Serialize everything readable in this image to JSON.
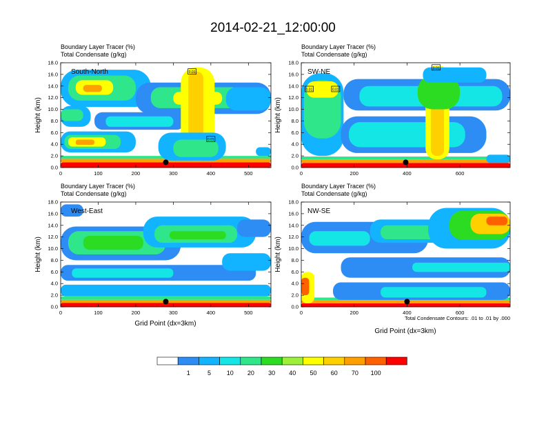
{
  "title": "2014-02-21_12:00:00",
  "colors": {
    "levels": [
      "#ffffff",
      "#2e8df5",
      "#12b4ff",
      "#14e6e6",
      "#30e68a",
      "#2cdc22",
      "#9cf03a",
      "#ffff00",
      "#ffd000",
      "#ffa000",
      "#ff6000",
      "#ff0000"
    ],
    "contour": "#000000",
    "marker": "#000000"
  },
  "labelbar": {
    "labels": [
      "1",
      "5",
      "10",
      "20",
      "30",
      "40",
      "50",
      "60",
      "70",
      "100"
    ]
  },
  "footnote": "Total Condensate Contours: .01 to .01 by .000",
  "chart_data": [
    {
      "type": "heatmap",
      "panel_label": "South-North",
      "title_lines": [
        "Boundary Layer Tracer   (%)",
        "Total Condensate   (g/kg)"
      ],
      "xlabel": "",
      "ylabel": "Height (km)",
      "xlim": [
        0,
        560
      ],
      "ylim": [
        0,
        18
      ],
      "xticks": [
        0,
        100,
        200,
        300,
        400,
        500
      ],
      "yticks": [
        0,
        2,
        4,
        6,
        8,
        10,
        12,
        14,
        16,
        18
      ],
      "ytick_labels": [
        "0.0",
        "2.0",
        "4.0",
        "6.0",
        "8.0",
        "10.0",
        "12.0",
        "14.0",
        "16.0",
        "18.0"
      ],
      "marker_x": 280,
      "contour_labels": [
        {
          "x": 350,
          "y": 16.5,
          "text": "0.01"
        },
        {
          "x": 400,
          "y": 4.9,
          "text": "0.01"
        }
      ],
      "bands": [
        {
          "x0": 0,
          "x1": 560,
          "y0": 0,
          "y1": 0.9,
          "level": 11
        },
        {
          "x0": 0,
          "x1": 560,
          "y0": 0.9,
          "y1": 1.5,
          "level": 9
        },
        {
          "x0": 0,
          "x1": 560,
          "y0": 1.5,
          "y1": 2.0,
          "level": 4
        },
        {
          "x0": 0,
          "x1": 200,
          "y0": 2.6,
          "y1": 6.2,
          "level": 2
        },
        {
          "x0": 10,
          "x1": 160,
          "y0": 3.2,
          "y1": 5.6,
          "level": 4
        },
        {
          "x0": 20,
          "x1": 120,
          "y0": 3.6,
          "y1": 5.2,
          "level": 7
        },
        {
          "x0": 40,
          "x1": 90,
          "y0": 3.9,
          "y1": 4.8,
          "level": 9
        },
        {
          "x0": 0,
          "x1": 80,
          "y0": 7.0,
          "y1": 10.6,
          "level": 2
        },
        {
          "x0": 0,
          "x1": 60,
          "y0": 8.0,
          "y1": 10.0,
          "level": 4
        },
        {
          "x0": 90,
          "x1": 330,
          "y0": 6.5,
          "y1": 9.5,
          "level": 1
        },
        {
          "x0": 120,
          "x1": 300,
          "y0": 7.0,
          "y1": 8.8,
          "level": 3
        },
        {
          "x0": 0,
          "x1": 240,
          "y0": 10.4,
          "y1": 16.8,
          "level": 2
        },
        {
          "x0": 20,
          "x1": 200,
          "y0": 11.5,
          "y1": 15.8,
          "level": 4
        },
        {
          "x0": 40,
          "x1": 140,
          "y0": 12.5,
          "y1": 15.0,
          "level": 7
        },
        {
          "x0": 60,
          "x1": 110,
          "y0": 13.0,
          "y1": 14.2,
          "level": 9
        },
        {
          "x0": 200,
          "x1": 560,
          "y0": 9.2,
          "y1": 14.6,
          "level": 1
        },
        {
          "x0": 240,
          "x1": 480,
          "y0": 10.2,
          "y1": 13.8,
          "level": 4
        },
        {
          "x0": 300,
          "x1": 430,
          "y0": 10.8,
          "y1": 13.0,
          "level": 7
        },
        {
          "x0": 320,
          "x1": 410,
          "y0": 1.2,
          "y1": 17.2,
          "level": 7
        },
        {
          "x0": 340,
          "x1": 380,
          "y0": 2.0,
          "y1": 16.5,
          "level": 8
        },
        {
          "x0": 260,
          "x1": 440,
          "y0": 1.2,
          "y1": 6.0,
          "level": 2
        },
        {
          "x0": 300,
          "x1": 420,
          "y0": 1.8,
          "y1": 4.8,
          "level": 4
        },
        {
          "x0": 440,
          "x1": 560,
          "y0": 9.8,
          "y1": 13.8,
          "level": 2
        },
        {
          "x0": 520,
          "x1": 560,
          "y0": 2.0,
          "y1": 3.5,
          "level": 2
        }
      ]
    },
    {
      "type": "heatmap",
      "panel_label": "SW-NE",
      "title_lines": [
        "Boundary Layer Tracer   (%)",
        "Total Condensate   (g/kg)"
      ],
      "xlabel": "",
      "ylabel": "Height (km)",
      "xlim": [
        0,
        790
      ],
      "ylim": [
        0,
        18
      ],
      "xticks": [
        0,
        200,
        400,
        600
      ],
      "yticks": [
        0,
        2,
        4,
        6,
        8,
        10,
        12,
        14,
        16,
        18
      ],
      "ytick_labels": [
        "0.0",
        "2.0",
        "4.0",
        "6.0",
        "8.0",
        "10.0",
        "12.0",
        "14.0",
        "16.0",
        "18.0"
      ],
      "marker_x": 395,
      "contour_labels": [
        {
          "x": 30,
          "y": 13.5,
          "text": "0.01"
        },
        {
          "x": 130,
          "y": 13.5,
          "text": "0.01"
        },
        {
          "x": 510,
          "y": 17.2,
          "text": "0.01"
        }
      ],
      "bands": [
        {
          "x0": 0,
          "x1": 790,
          "y0": 0,
          "y1": 0.8,
          "level": 11
        },
        {
          "x0": 0,
          "x1": 790,
          "y0": 0.8,
          "y1": 1.4,
          "level": 9
        },
        {
          "x0": 0,
          "x1": 790,
          "y0": 1.4,
          "y1": 1.9,
          "level": 4
        },
        {
          "x0": 0,
          "x1": 160,
          "y0": 2.0,
          "y1": 16.2,
          "level": 2
        },
        {
          "x0": 10,
          "x1": 150,
          "y0": 5.0,
          "y1": 15.0,
          "level": 4
        },
        {
          "x0": 20,
          "x1": 140,
          "y0": 12.0,
          "y1": 14.8,
          "level": 7
        },
        {
          "x0": 160,
          "x1": 790,
          "y0": 9.8,
          "y1": 15.2,
          "level": 1
        },
        {
          "x0": 220,
          "x1": 760,
          "y0": 10.5,
          "y1": 14.0,
          "level": 3
        },
        {
          "x0": 150,
          "x1": 700,
          "y0": 2.5,
          "y1": 8.8,
          "level": 1
        },
        {
          "x0": 180,
          "x1": 620,
          "y0": 3.5,
          "y1": 7.8,
          "level": 3
        },
        {
          "x0": 470,
          "x1": 560,
          "y0": 1.4,
          "y1": 17.5,
          "level": 7
        },
        {
          "x0": 490,
          "x1": 540,
          "y0": 2.0,
          "y1": 16.5,
          "level": 8
        },
        {
          "x0": 440,
          "x1": 600,
          "y0": 10.0,
          "y1": 15.8,
          "level": 5
        },
        {
          "x0": 460,
          "x1": 700,
          "y0": 14.6,
          "y1": 17.2,
          "level": 2
        },
        {
          "x0": 700,
          "x1": 790,
          "y0": 0.8,
          "y1": 2.2,
          "level": 2
        }
      ]
    },
    {
      "type": "heatmap",
      "panel_label": "West-East",
      "title_lines": [
        "Boundary Layer Tracer   (%)",
        "Total Condensate   (g/kg)"
      ],
      "xlabel": "Grid Point (dx=3km)",
      "ylabel": "Height (km)",
      "xlim": [
        0,
        560
      ],
      "ylim": [
        0,
        18
      ],
      "xticks": [
        0,
        100,
        200,
        300,
        400,
        500
      ],
      "yticks": [
        0,
        2,
        4,
        6,
        8,
        10,
        12,
        14,
        16,
        18
      ],
      "ytick_labels": [
        "0.0",
        "2.0",
        "4.0",
        "6.0",
        "8.0",
        "10.0",
        "12.0",
        "14.0",
        "16.0",
        "18.0"
      ],
      "marker_x": 280,
      "contour_labels": [],
      "bands": [
        {
          "x0": 0,
          "x1": 560,
          "y0": 0,
          "y1": 0.7,
          "level": 11
        },
        {
          "x0": 0,
          "x1": 560,
          "y0": 0.7,
          "y1": 1.2,
          "level": 9
        },
        {
          "x0": 0,
          "x1": 560,
          "y0": 1.2,
          "y1": 1.8,
          "level": 4
        },
        {
          "x0": 0,
          "x1": 560,
          "y0": 1.8,
          "y1": 3.8,
          "level": 2
        },
        {
          "x0": 0,
          "x1": 520,
          "y0": 4.5,
          "y1": 7.2,
          "level": 1
        },
        {
          "x0": 30,
          "x1": 300,
          "y0": 5.0,
          "y1": 6.6,
          "level": 3
        },
        {
          "x0": 0,
          "x1": 320,
          "y0": 8.0,
          "y1": 13.8,
          "level": 1
        },
        {
          "x0": 20,
          "x1": 280,
          "y0": 9.0,
          "y1": 13.0,
          "level": 4
        },
        {
          "x0": 60,
          "x1": 220,
          "y0": 9.8,
          "y1": 12.2,
          "level": 5
        },
        {
          "x0": 0,
          "x1": 60,
          "y0": 15.5,
          "y1": 17.6,
          "level": 1
        },
        {
          "x0": 220,
          "x1": 520,
          "y0": 10.2,
          "y1": 15.5,
          "level": 2
        },
        {
          "x0": 250,
          "x1": 470,
          "y0": 11.0,
          "y1": 14.0,
          "level": 4
        },
        {
          "x0": 290,
          "x1": 440,
          "y0": 11.6,
          "y1": 13.0,
          "level": 5
        },
        {
          "x0": 430,
          "x1": 560,
          "y0": 6.2,
          "y1": 9.2,
          "level": 2
        },
        {
          "x0": 470,
          "x1": 560,
          "y0": 12.0,
          "y1": 15.0,
          "level": 1
        }
      ]
    },
    {
      "type": "heatmap",
      "panel_label": "NW-SE",
      "title_lines": [
        "Boundary Layer Tracer   (%)",
        "Total Condensate   (g/kg)"
      ],
      "xlabel": "Grid Point (dx=3km)",
      "ylabel": "Height (km)",
      "xlim": [
        0,
        790
      ],
      "ylim": [
        0,
        18
      ],
      "xticks": [
        0,
        200,
        400,
        600
      ],
      "yticks": [
        0,
        2,
        4,
        6,
        8,
        10,
        12,
        14,
        16,
        18
      ],
      "ytick_labels": [
        "0.0",
        "2.0",
        "4.0",
        "6.0",
        "8.0",
        "10.0",
        "12.0",
        "14.0",
        "16.0",
        "18.0"
      ],
      "marker_x": 400,
      "contour_labels": [],
      "bands": [
        {
          "x0": 0,
          "x1": 790,
          "y0": 0,
          "y1": 0.6,
          "level": 11
        },
        {
          "x0": 0,
          "x1": 790,
          "y0": 0.6,
          "y1": 1.1,
          "level": 9
        },
        {
          "x0": 0,
          "x1": 790,
          "y0": 1.1,
          "y1": 1.6,
          "level": 4
        },
        {
          "x0": 0,
          "x1": 50,
          "y0": 0.6,
          "y1": 6.0,
          "level": 7
        },
        {
          "x0": 0,
          "x1": 30,
          "y0": 2.0,
          "y1": 5.0,
          "level": 10
        },
        {
          "x0": 120,
          "x1": 790,
          "y0": 1.2,
          "y1": 4.2,
          "level": 1
        },
        {
          "x0": 300,
          "x1": 700,
          "y0": 1.6,
          "y1": 3.4,
          "level": 3
        },
        {
          "x0": 0,
          "x1": 480,
          "y0": 9.2,
          "y1": 14.6,
          "level": 1
        },
        {
          "x0": 30,
          "x1": 260,
          "y0": 10.5,
          "y1": 13.0,
          "level": 3
        },
        {
          "x0": 150,
          "x1": 790,
          "y0": 5.0,
          "y1": 8.5,
          "level": 1
        },
        {
          "x0": 420,
          "x1": 790,
          "y0": 6.0,
          "y1": 7.6,
          "level": 3
        },
        {
          "x0": 260,
          "x1": 600,
          "y0": 11.0,
          "y1": 15.0,
          "level": 2
        },
        {
          "x0": 300,
          "x1": 560,
          "y0": 11.6,
          "y1": 14.0,
          "level": 4
        },
        {
          "x0": 480,
          "x1": 790,
          "y0": 10.0,
          "y1": 17.0,
          "level": 2
        },
        {
          "x0": 560,
          "x1": 790,
          "y0": 11.5,
          "y1": 16.5,
          "level": 5
        },
        {
          "x0": 640,
          "x1": 790,
          "y0": 12.5,
          "y1": 16.0,
          "level": 8
        },
        {
          "x0": 700,
          "x1": 780,
          "y0": 14.0,
          "y1": 15.5,
          "level": 10
        }
      ]
    }
  ]
}
